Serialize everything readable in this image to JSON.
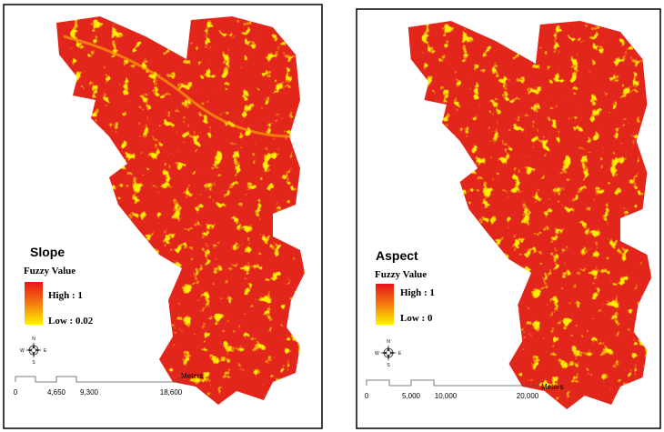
{
  "panels": [
    {
      "legend": {
        "title": "Slope",
        "subtitle": "Fuzzy Value",
        "high": "High : 1",
        "low": "Low : 0.02"
      },
      "compass": {
        "n": "N",
        "s": "S",
        "e": "E",
        "w": "W"
      },
      "scale_bar": {
        "labels": [
          "0",
          "4,650",
          "9,300",
          "18,600"
        ],
        "unit": "Meters"
      }
    },
    {
      "legend": {
        "title": "Aspect",
        "subtitle": "Fuzzy Value",
        "high": "High : 1",
        "low": "Low : 0"
      },
      "compass": {
        "n": "N",
        "s": "S",
        "e": "E",
        "w": "W"
      },
      "scale_bar": {
        "labels": [
          "0",
          "5,000",
          "10,000",
          "20,000"
        ],
        "unit": "Meters"
      }
    }
  ]
}
